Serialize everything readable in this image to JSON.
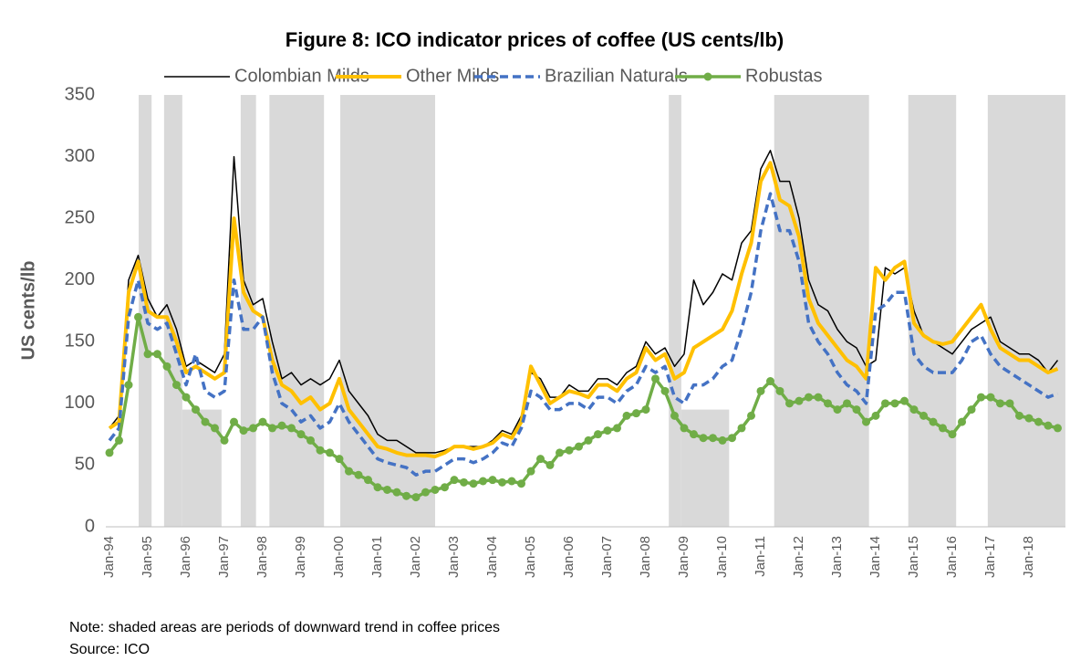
{
  "chart_data": {
    "type": "line",
    "title": "Figure 8: ICO indicator prices of coffee (US cents/lb)",
    "y_label": "US cents/lb",
    "notes": [
      "Note: shaded areas are periods of downward trend in coffee prices",
      "Source: ICO"
    ],
    "categories": [
      "Jan-94",
      null,
      null,
      null,
      "Jan-95",
      null,
      null,
      null,
      "Jan-96",
      null,
      null,
      null,
      "Jan-97",
      null,
      null,
      null,
      "Jan-98",
      null,
      null,
      null,
      "Jan-99",
      null,
      null,
      null,
      "Jan-00",
      null,
      null,
      null,
      "Jan-01",
      null,
      null,
      null,
      "Jan-02",
      null,
      null,
      null,
      "Jan-03",
      null,
      null,
      null,
      "Jan-04",
      null,
      null,
      null,
      "Jan-05",
      null,
      null,
      null,
      "Jan-06",
      null,
      null,
      null,
      "Jan-07",
      null,
      null,
      null,
      "Jan-08",
      null,
      null,
      null,
      "Jan-09",
      null,
      null,
      null,
      "Jan-10",
      null,
      null,
      null,
      "Jan-11",
      null,
      null,
      null,
      "Jan-12",
      null,
      null,
      null,
      "Jan-13",
      null,
      null,
      null,
      "Jan-14",
      null,
      null,
      null,
      "Jan-15",
      null,
      null,
      null,
      "Jan-16",
      null,
      null,
      null,
      "Jan-17",
      null,
      null,
      null,
      "Jan-18",
      null,
      null,
      null
    ],
    "ylim": [
      0,
      350
    ],
    "yticks": [
      0,
      50,
      100,
      150,
      200,
      250,
      300,
      350
    ],
    "grid": false,
    "legend": "top",
    "shaded_color": "#d9d9d9",
    "shaded": [
      [
        3.05,
        4.4,
        350
      ],
      [
        5.7,
        7.6,
        350
      ],
      [
        7.6,
        11.7,
        95
      ],
      [
        13.7,
        15.3,
        350
      ],
      [
        16.7,
        22.4,
        350
      ],
      [
        24.1,
        34,
        350
      ],
      [
        58.4,
        59.7,
        350
      ],
      [
        59.7,
        64.7,
        95
      ],
      [
        69.4,
        79.3,
        350
      ],
      [
        83.4,
        88.4,
        350
      ],
      [
        91.7,
        99.8,
        350
      ]
    ],
    "series": [
      {
        "name": "Colombian Milds",
        "color": "#000000",
        "style": "solid",
        "width": 1.5,
        "values": [
          80,
          90,
          200,
          220,
          185,
          170,
          180,
          160,
          130,
          135,
          130,
          125,
          140,
          300,
          200,
          180,
          185,
          150,
          120,
          125,
          115,
          120,
          115,
          120,
          135,
          110,
          100,
          90,
          75,
          70,
          70,
          65,
          60,
          60,
          60,
          62,
          65,
          65,
          65,
          65,
          70,
          78,
          75,
          90,
          125,
          120,
          105,
          105,
          115,
          110,
          110,
          120,
          120,
          115,
          125,
          130,
          150,
          140,
          145,
          130,
          140,
          200,
          180,
          190,
          205,
          200,
          230,
          240,
          290,
          305,
          280,
          280,
          250,
          200,
          180,
          175,
          160,
          150,
          145,
          130,
          135,
          210,
          205,
          210,
          175,
          155,
          150,
          145,
          140,
          150,
          160,
          165,
          170,
          150,
          145,
          140,
          140,
          135,
          125,
          135
        ]
      },
      {
        "name": "Other Milds",
        "color": "#ffc000",
        "style": "solid",
        "width": 4,
        "values": [
          80,
          85,
          190,
          215,
          175,
          170,
          170,
          150,
          125,
          130,
          125,
          120,
          125,
          250,
          190,
          175,
          170,
          135,
          115,
          110,
          100,
          105,
          95,
          100,
          120,
          95,
          85,
          75,
          65,
          63,
          60,
          58,
          58,
          58,
          57,
          60,
          65,
          65,
          63,
          65,
          68,
          75,
          72,
          85,
          130,
          115,
          100,
          105,
          110,
          108,
          105,
          115,
          115,
          110,
          120,
          125,
          145,
          135,
          140,
          120,
          125,
          145,
          150,
          155,
          160,
          175,
          205,
          230,
          280,
          295,
          265,
          260,
          235,
          185,
          165,
          155,
          145,
          135,
          130,
          120,
          210,
          200,
          210,
          215,
          165,
          155,
          150,
          148,
          150,
          160,
          170,
          180,
          160,
          145,
          140,
          135,
          135,
          130,
          125,
          128
        ]
      },
      {
        "name": "Brazilian Naturals",
        "color": "#4472c4",
        "style": "dashed",
        "width": 3.5,
        "values": [
          70,
          80,
          170,
          200,
          165,
          160,
          165,
          140,
          115,
          140,
          110,
          105,
          110,
          200,
          160,
          160,
          170,
          125,
          100,
          95,
          85,
          90,
          80,
          85,
          100,
          85,
          75,
          65,
          55,
          52,
          50,
          48,
          42,
          45,
          45,
          50,
          55,
          55,
          52,
          55,
          60,
          68,
          65,
          80,
          110,
          105,
          95,
          95,
          100,
          100,
          95,
          105,
          105,
          100,
          110,
          115,
          130,
          125,
          130,
          105,
          100,
          115,
          115,
          120,
          130,
          135,
          160,
          190,
          240,
          270,
          240,
          240,
          215,
          165,
          150,
          140,
          125,
          115,
          110,
          100,
          175,
          180,
          190,
          190,
          140,
          130,
          125,
          125,
          125,
          135,
          150,
          155,
          140,
          130,
          125,
          120,
          115,
          110,
          105,
          108
        ]
      },
      {
        "name": "Robustas",
        "color": "#70ad47",
        "style": "markers",
        "width": 3.5,
        "values": [
          60,
          70,
          115,
          170,
          140,
          140,
          130,
          115,
          105,
          95,
          85,
          80,
          70,
          85,
          78,
          80,
          85,
          80,
          82,
          80,
          75,
          70,
          62,
          60,
          55,
          45,
          42,
          38,
          32,
          30,
          28,
          25,
          24,
          28,
          30,
          32,
          38,
          36,
          35,
          37,
          38,
          36,
          37,
          35,
          45,
          55,
          50,
          60,
          62,
          65,
          70,
          75,
          78,
          80,
          90,
          92,
          95,
          120,
          110,
          90,
          80,
          75,
          72,
          72,
          70,
          72,
          80,
          90,
          110,
          118,
          110,
          100,
          102,
          105,
          105,
          100,
          95,
          100,
          95,
          85,
          90,
          100,
          100,
          102,
          95,
          90,
          85,
          80,
          75,
          85,
          95,
          105,
          105,
          100,
          100,
          90,
          88,
          85,
          82,
          80
        ]
      }
    ]
  }
}
